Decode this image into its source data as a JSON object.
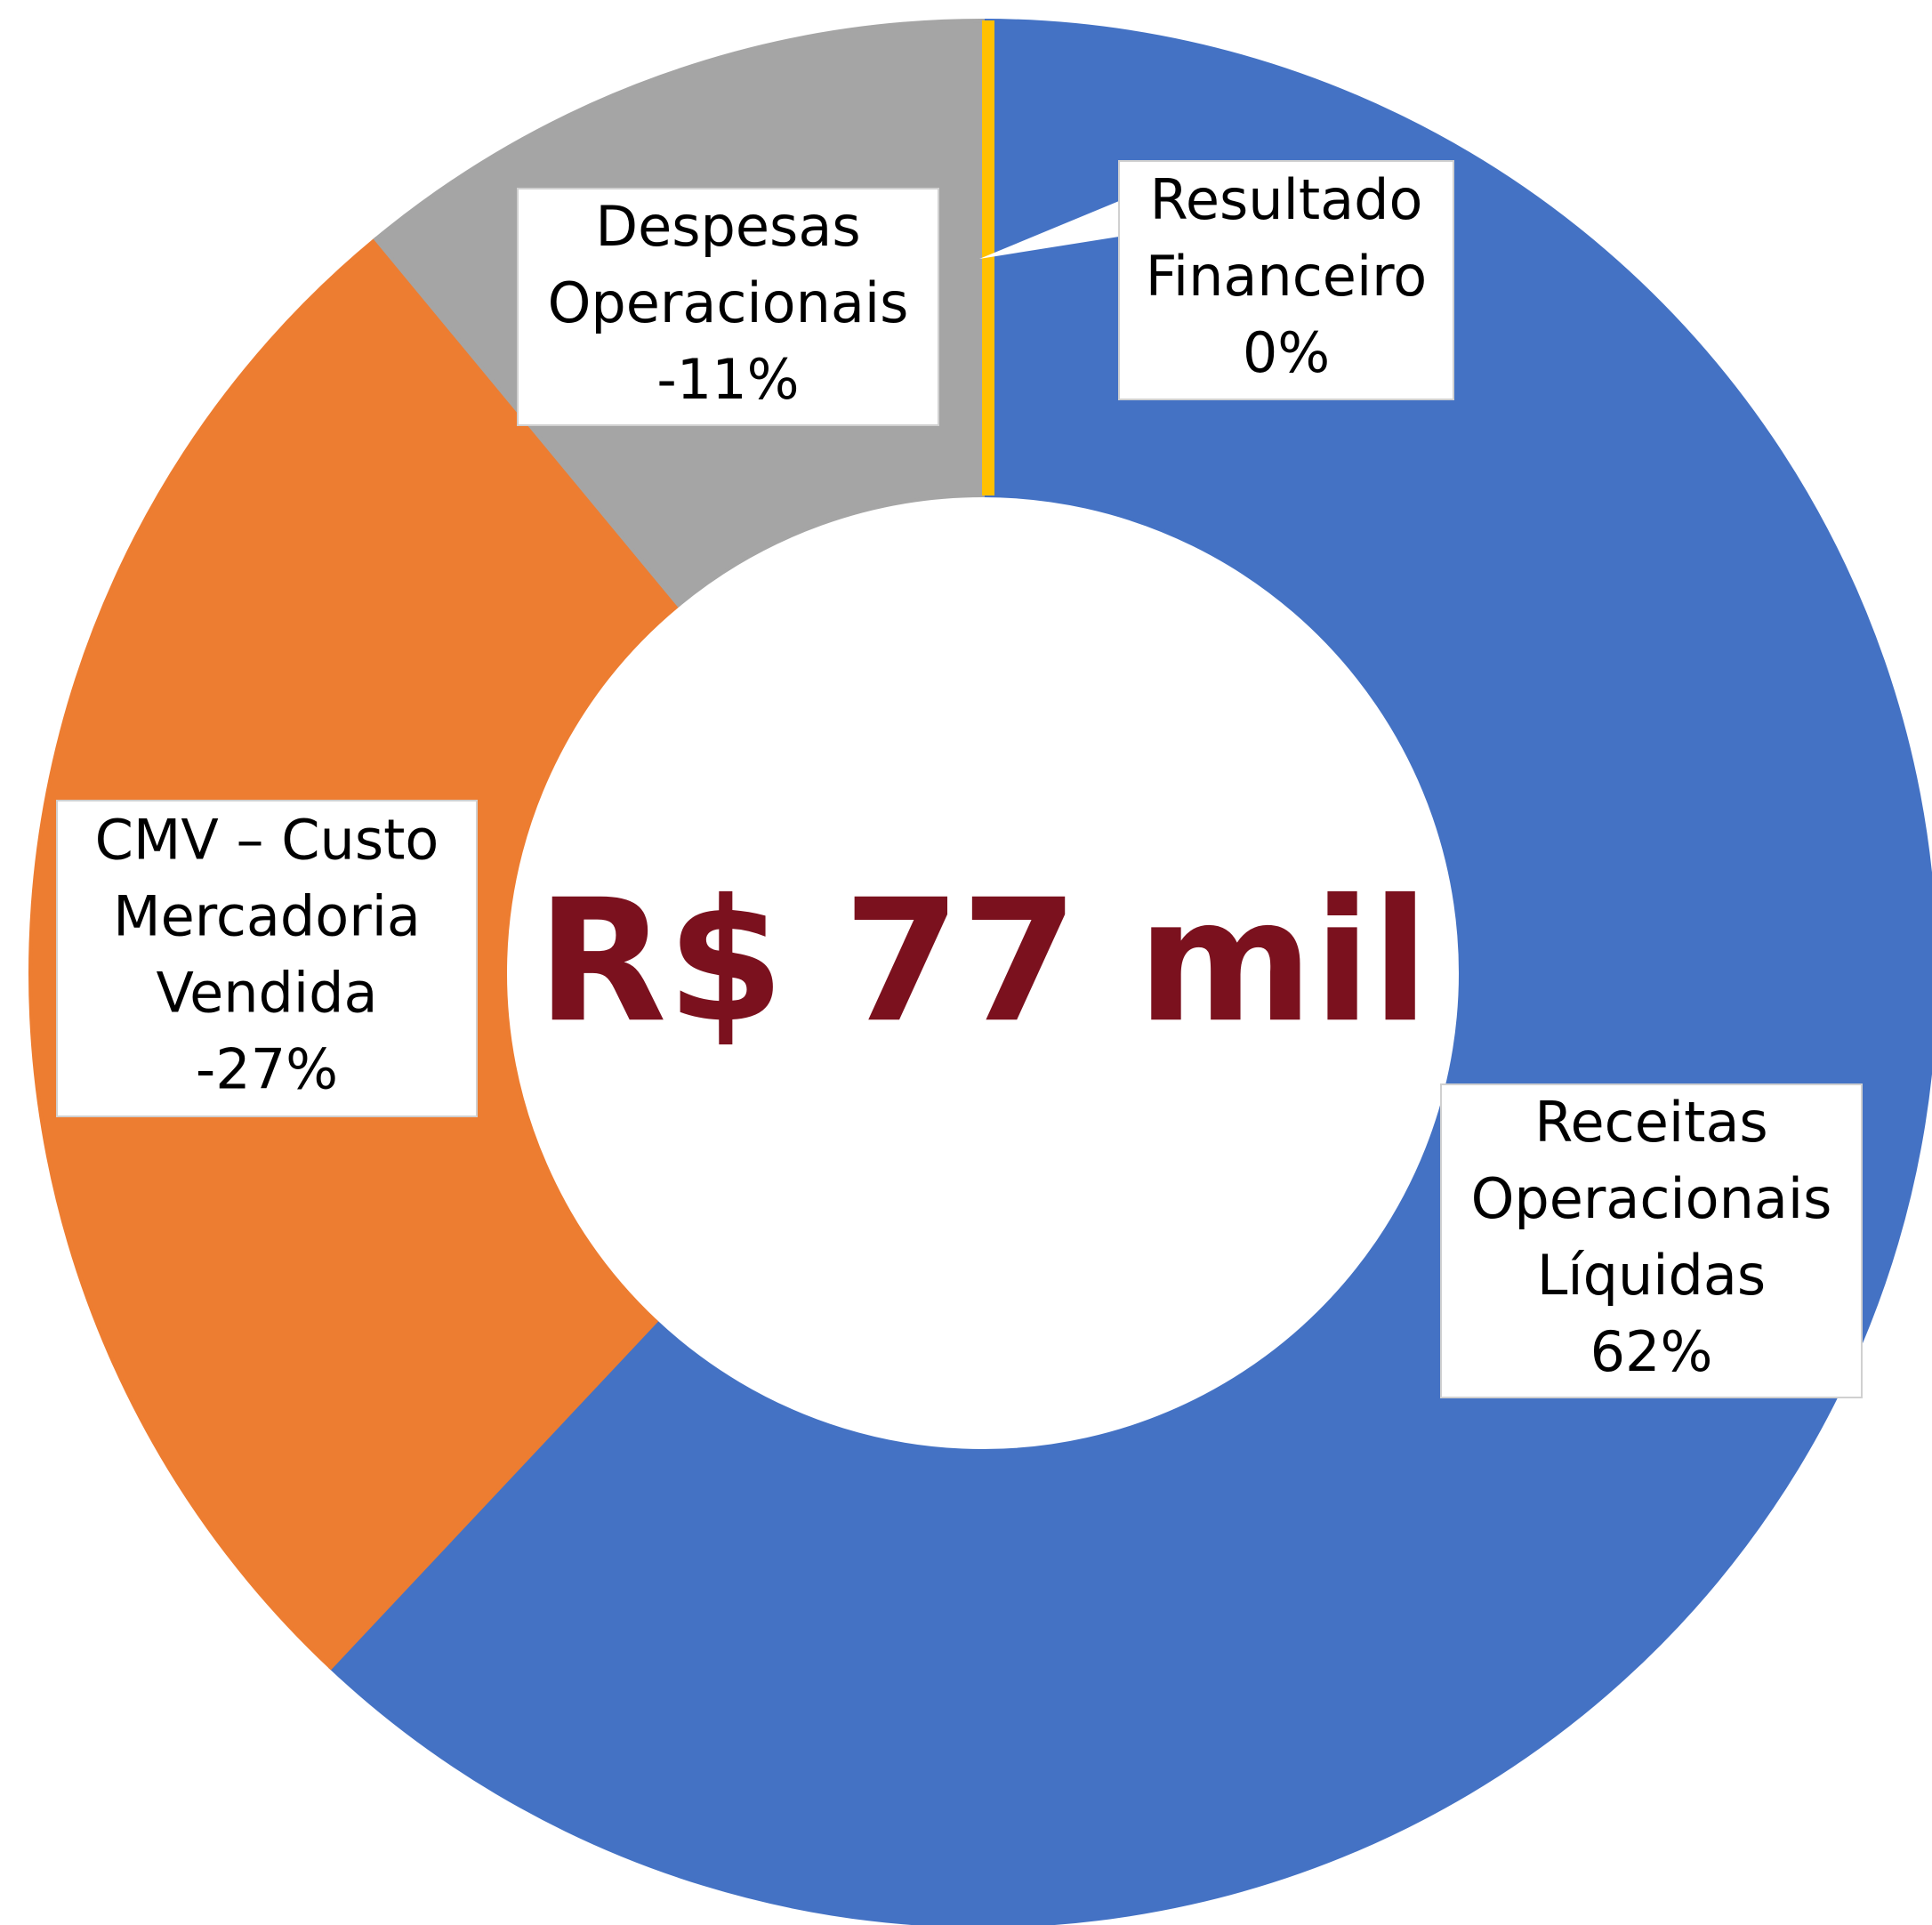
{
  "chart_data": {
    "type": "pie",
    "donut": true,
    "categories": [
      [
        "Receitas",
        "Operacionais",
        "Líquidas"
      ],
      [
        "CMV – Custo",
        "Mercadoria",
        "Vendida"
      ],
      [
        "Despesas",
        "Operacionais"
      ],
      [
        "Resultado",
        "Financeiro"
      ]
    ],
    "values": [
      62,
      -27,
      -11,
      0
    ],
    "value_labels": [
      "62%",
      "-27%",
      "-11%",
      "0%"
    ],
    "colors": [
      "#4472c4",
      "#ed7d31",
      "#a5a5a5",
      "#ffc000"
    ],
    "center_label": "R$ 77 mil"
  }
}
